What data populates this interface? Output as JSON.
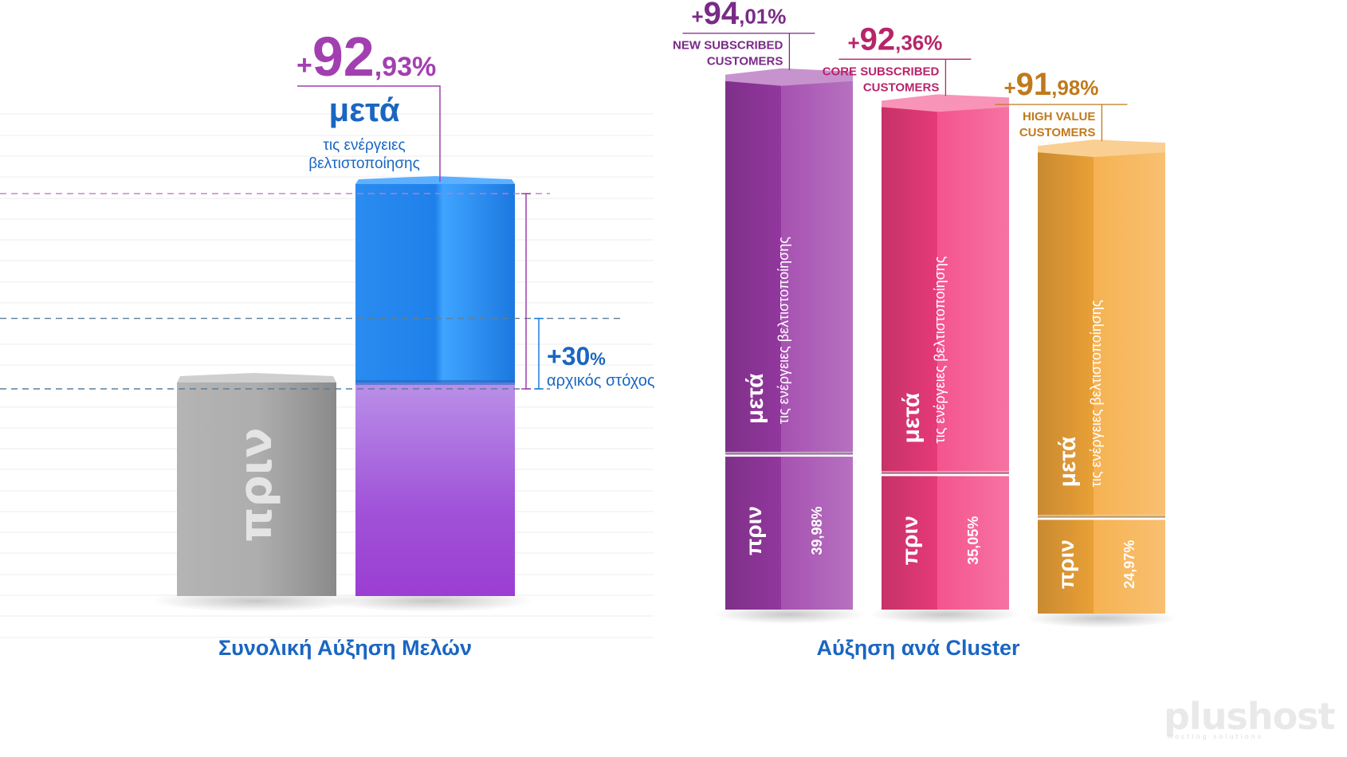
{
  "watermark": {
    "brand": "plushost",
    "tagline": "hosting solutions"
  },
  "chart_data": [
    {
      "type": "bar",
      "title": "Συνολική Αύξηση Μελών",
      "categories": [
        "πριν",
        "μετά"
      ],
      "series": [
        {
          "name": "πριν",
          "values": [
            100,
            100
          ]
        },
        {
          "name": "αύξηση μετά τις ενέργειες βελτιστοποίησης",
          "values": [
            0,
            92.93
          ]
        }
      ],
      "labels": {
        "before": "πριν",
        "after": "μετά",
        "after_sub": "τις ενέργειες βελτιστοποίησης"
      },
      "growth": {
        "int": "+92",
        "dec": ",93%"
      },
      "target": {
        "value": 30,
        "int": "+30",
        "pct": "%",
        "label": "αρχικός στόχος"
      },
      "colors": {
        "before": "#9a9a9a",
        "after_base": "#a04ad0",
        "after_top": "#1e7ee6",
        "accent": "#a23fb0",
        "text_blue": "#1a66c2"
      }
    },
    {
      "type": "bar",
      "title": "Αύξηση ανά Cluster",
      "categories": [
        "NEW SUBSCRIBED CUSTOMERS",
        "CORE SUBSCRIBED CUSTOMERS",
        "HIGH VALUE CUSTOMERS"
      ],
      "series": [
        {
          "name": "πριν",
          "values": [
            39.98,
            35.05,
            24.97
          ]
        },
        {
          "name": "μετά τις ενέργειες βελτιστοποίησης",
          "values": [
            94.01,
            92.36,
            91.98
          ]
        }
      ],
      "before_labels": [
        "39,98%",
        "35,05%",
        "24,97%"
      ],
      "growth": [
        {
          "int": "+94",
          "dec": ",01%",
          "name1": "NEW SUBSCRIBED",
          "name2": "CUSTOMERS"
        },
        {
          "int": "+92",
          "dec": ",36%",
          "name1": "CORE SUBSCRIBED",
          "name2": "CUSTOMERS"
        },
        {
          "int": "+91",
          "dec": ",98%",
          "name1": "HIGH VALUE",
          "name2": "CUSTOMERS"
        }
      ],
      "labels": {
        "before": "πριν",
        "after": "μετά",
        "after_sub": "τις ενέργειες βελτιστοποίησης"
      },
      "colors": [
        "#9a3aa6",
        "#f23d7e",
        "#f5a83a"
      ],
      "text_colors": [
        "#7a2a88",
        "#b8246a",
        "#c07a1c"
      ]
    }
  ]
}
